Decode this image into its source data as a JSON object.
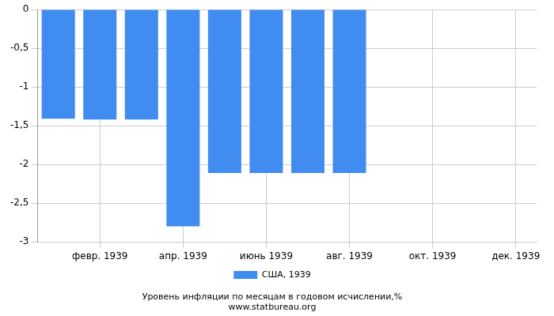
{
  "chart_data": {
    "type": "bar",
    "title": "Уровень инфляции по месяцам в годовом исчислении,%",
    "subtitle": "www.statbureau.org",
    "categories": [
      null,
      "февр. 1939",
      null,
      "апр. 1939",
      null,
      "июнь 1939",
      null,
      "авг. 1939",
      null,
      "окт. 1939",
      null,
      "дек. 1939"
    ],
    "series": [
      {
        "name": "США, 1939",
        "color": "#418cf0",
        "values": [
          -1.41,
          -1.42,
          -1.42,
          -2.8,
          -2.11,
          -2.11,
          -2.11,
          -2.11,
          null,
          null,
          null,
          null
        ]
      }
    ],
    "ylim": [
      -3,
      0
    ],
    "yticks": [
      -3,
      {
        "value": -2.5,
        "label": "-2,5"
      },
      -2,
      {
        "value": -1.5,
        "label": "-1,5"
      },
      -1,
      {
        "value": -0.5,
        "label": "-0,5"
      },
      0
    ],
    "grid": true,
    "legend": "bottom"
  }
}
